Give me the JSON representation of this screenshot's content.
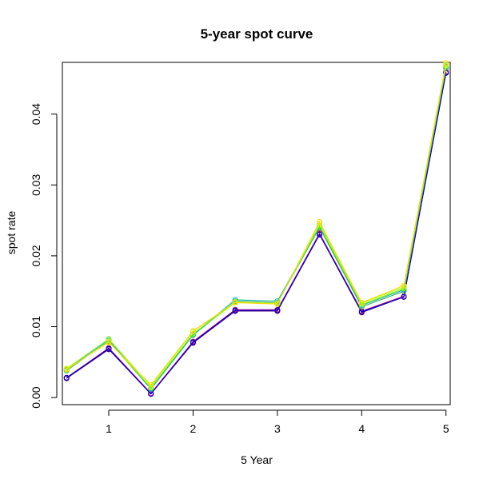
{
  "chart_data": {
    "type": "line",
    "title": "5-year spot curve",
    "xlabel": "5 Year",
    "ylabel": "spot rate",
    "x": [
      0.5,
      1,
      1.5,
      2,
      2.5,
      3,
      3.5,
      4,
      4.5,
      5
    ],
    "x_ticks": [
      "1",
      "2",
      "3",
      "4",
      "5"
    ],
    "y_ticks": [
      "0.00",
      "0.01",
      "0.02",
      "0.03",
      "0.04"
    ],
    "xlim": [
      0.45,
      5.05
    ],
    "ylim": [
      -0.001,
      0.0473
    ],
    "grid": false,
    "legend": "none",
    "series": [
      {
        "color": "#4b0082",
        "values": [
          0.0027,
          0.0068,
          0.0005,
          0.0077,
          0.0122,
          0.0122,
          0.023,
          0.012,
          0.0142,
          0.0458
        ]
      },
      {
        "color": "#8b008b",
        "values": [
          0.0028,
          0.0069,
          0.0006,
          0.0078,
          0.0123,
          0.0123,
          0.0231,
          0.0121,
          0.0142,
          0.0459
        ]
      },
      {
        "color": "#c71585",
        "values": [
          0.0028,
          0.007,
          0.0006,
          0.0079,
          0.0124,
          0.0124,
          0.0232,
          0.0122,
          0.0143,
          0.046
        ]
      },
      {
        "color": "#0000cd",
        "values": [
          0.0028,
          0.0069,
          0.0005,
          0.0078,
          0.0123,
          0.0123,
          0.023,
          0.0121,
          0.0142,
          0.0458
        ]
      },
      {
        "color": "#3cb371",
        "values": [
          0.0038,
          0.008,
          0.0012,
          0.0088,
          0.0136,
          0.0134,
          0.024,
          0.0128,
          0.015,
          0.0465
        ]
      },
      {
        "color": "#20b2aa",
        "values": [
          0.004,
          0.0082,
          0.0013,
          0.0089,
          0.0138,
          0.0136,
          0.0242,
          0.013,
          0.0152,
          0.0467
        ]
      },
      {
        "color": "#7cfc00",
        "values": [
          0.0039,
          0.0079,
          0.0014,
          0.009,
          0.0134,
          0.0133,
          0.0243,
          0.0131,
          0.0154,
          0.0468
        ]
      },
      {
        "color": "#adff2f",
        "values": [
          0.0041,
          0.0083,
          0.0016,
          0.0093,
          0.0135,
          0.0133,
          0.0246,
          0.0133,
          0.0156,
          0.047
        ]
      },
      {
        "color": "#ffd700",
        "values": [
          0.004,
          0.0078,
          0.0018,
          0.0094,
          0.0134,
          0.0132,
          0.0248,
          0.0134,
          0.0158,
          0.0472
        ]
      }
    ]
  }
}
